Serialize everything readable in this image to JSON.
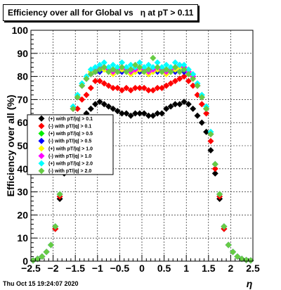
{
  "chart_data": {
    "type": "scatter",
    "title": "Efficiency over all for Global vs   η at pT > 0.11",
    "xlabel": "η",
    "ylabel": "Efficiency over all (%)",
    "xlim": [
      -2.5,
      2.5
    ],
    "ylim": [
      0,
      100
    ],
    "x_ticks": [
      "−2.5",
      "−2",
      "−1.5",
      "−1",
      "−0.5",
      "0",
      "0.5",
      "1",
      "1.5",
      "2",
      "2.5"
    ],
    "y_ticks": [
      "0",
      "10",
      "20",
      "30",
      "40",
      "50",
      "60",
      "70",
      "80",
      "90",
      "100"
    ],
    "grid": true,
    "legend_position": "left-middle",
    "timestamp": "Thu Oct 15 19:24:07 2020",
    "x": [
      -2.45,
      -2.35,
      -2.25,
      -2.15,
      -2.05,
      -1.95,
      -1.85,
      -1.75,
      -1.65,
      -1.55,
      -1.45,
      -1.35,
      -1.25,
      -1.15,
      -1.05,
      -0.95,
      -0.85,
      -0.75,
      -0.65,
      -0.55,
      -0.45,
      -0.35,
      -0.25,
      -0.15,
      -0.05,
      0.05,
      0.15,
      0.25,
      0.35,
      0.45,
      0.55,
      0.65,
      0.75,
      0.85,
      0.95,
      1.05,
      1.15,
      1.25,
      1.35,
      1.45,
      1.55,
      1.65,
      1.75,
      1.85,
      1.95,
      2.05,
      2.15,
      2.25,
      2.35,
      2.45
    ],
    "series": [
      {
        "name": "(+) with pT/|q| > 0.1",
        "color": "#000000",
        "values": [
          0.3,
          1,
          2,
          4,
          7,
          14,
          27,
          38,
          48,
          56,
          60,
          62,
          64,
          66,
          68,
          69,
          68,
          67,
          66,
          65,
          64,
          64,
          63,
          64,
          64,
          64,
          63,
          63,
          64,
          64,
          66,
          67,
          68,
          68,
          69,
          68,
          66,
          63,
          60,
          56,
          48,
          38,
          27,
          14,
          7,
          4,
          2,
          1,
          0.5,
          0.3
        ]
      },
      {
        "name": "(-) with pT/|q| > 0.1",
        "color": "#ff0000",
        "values": [
          0.3,
          1,
          2,
          4,
          7,
          14,
          28,
          40,
          52,
          62,
          66,
          70,
          72,
          75,
          78,
          78,
          77,
          76,
          75,
          75,
          74,
          75,
          74,
          75,
          75,
          75,
          74,
          74,
          75,
          75,
          76,
          77,
          78,
          79,
          80,
          78,
          76,
          72,
          68,
          64,
          52,
          40,
          28,
          14,
          7,
          4,
          2,
          1,
          0.5,
          0.3
        ]
      },
      {
        "name": "(+) with pT/|q| > 0.5",
        "color": "#00ee00",
        "values": [
          0.3,
          1,
          2,
          4,
          7,
          15,
          29,
          42,
          55,
          66,
          71,
          76,
          79,
          81,
          82,
          83,
          83,
          82,
          83,
          82,
          83,
          82,
          83,
          82,
          83,
          82,
          83,
          82,
          83,
          82,
          83,
          82,
          83,
          84,
          83,
          82,
          80,
          76,
          71,
          66,
          55,
          42,
          29,
          15,
          7,
          4,
          2,
          1,
          0.5,
          0.3
        ]
      },
      {
        "name": "(-) with pT/|q| > 0.5",
        "color": "#0000ff",
        "values": [
          0.3,
          1,
          2,
          4,
          7,
          15,
          29,
          42,
          55,
          66,
          71,
          76,
          79,
          81,
          82,
          82,
          84,
          83,
          82,
          83,
          82,
          83,
          82,
          83,
          82,
          83,
          82,
          83,
          82,
          83,
          82,
          83,
          82,
          82,
          82,
          82,
          80,
          76,
          71,
          66,
          55,
          42,
          29,
          15,
          7,
          4,
          2,
          1,
          0.5,
          0.3
        ]
      },
      {
        "name": "(+) with pT/|q| > 1.0",
        "color": "#ffff00",
        "values": [
          0.3,
          1,
          2,
          4,
          7,
          15,
          29,
          42,
          55,
          66,
          71,
          76,
          79,
          82,
          83,
          84,
          83,
          82,
          81,
          82,
          83,
          82,
          81,
          82,
          83,
          82,
          81,
          82,
          83,
          82,
          81,
          82,
          83,
          84,
          84,
          82,
          80,
          76,
          71,
          66,
          55,
          42,
          29,
          15,
          7,
          4,
          2,
          1,
          0.5,
          0.3
        ]
      },
      {
        "name": "(-) with pT/|q| > 1.0",
        "color": "#ff00ff",
        "values": [
          0.3,
          1,
          2,
          4,
          7,
          15,
          29,
          42,
          55,
          66,
          71,
          76,
          79,
          81,
          83,
          84,
          84,
          83,
          82,
          83,
          84,
          83,
          82,
          83,
          84,
          83,
          82,
          83,
          84,
          83,
          82,
          83,
          84,
          85,
          84,
          82,
          80,
          76,
          71,
          66,
          55,
          42,
          29,
          15,
          7,
          4,
          2,
          1,
          0.5,
          0.3
        ]
      },
      {
        "name": "(+) with pT/|q| > 2.0",
        "color": "#00ffff",
        "values": [
          0.3,
          1,
          2,
          4,
          7,
          15,
          29,
          42,
          56,
          67,
          72,
          77,
          80,
          83,
          84,
          85,
          86,
          84,
          85,
          84,
          86,
          84,
          85,
          84,
          86,
          84,
          85,
          84,
          86,
          84,
          85,
          84,
          86,
          85,
          85,
          83,
          81,
          77,
          72,
          67,
          56,
          42,
          29,
          15,
          7,
          4,
          2,
          1,
          0.5,
          0.3
        ]
      },
      {
        "name": "(-) with pT/|q| > 2.0",
        "color": "#66cc44",
        "values": [
          0.3,
          1,
          2,
          4,
          7,
          15,
          29,
          42,
          55,
          66,
          71,
          76,
          79,
          81,
          82,
          83,
          84,
          82,
          83,
          82,
          84,
          82,
          83,
          85,
          84,
          82,
          83,
          88,
          84,
          82,
          83,
          82,
          84,
          82,
          83,
          81,
          79,
          76,
          71,
          66,
          55,
          42,
          29,
          15,
          7,
          4,
          2,
          1,
          0.5,
          0.3
        ]
      }
    ]
  }
}
